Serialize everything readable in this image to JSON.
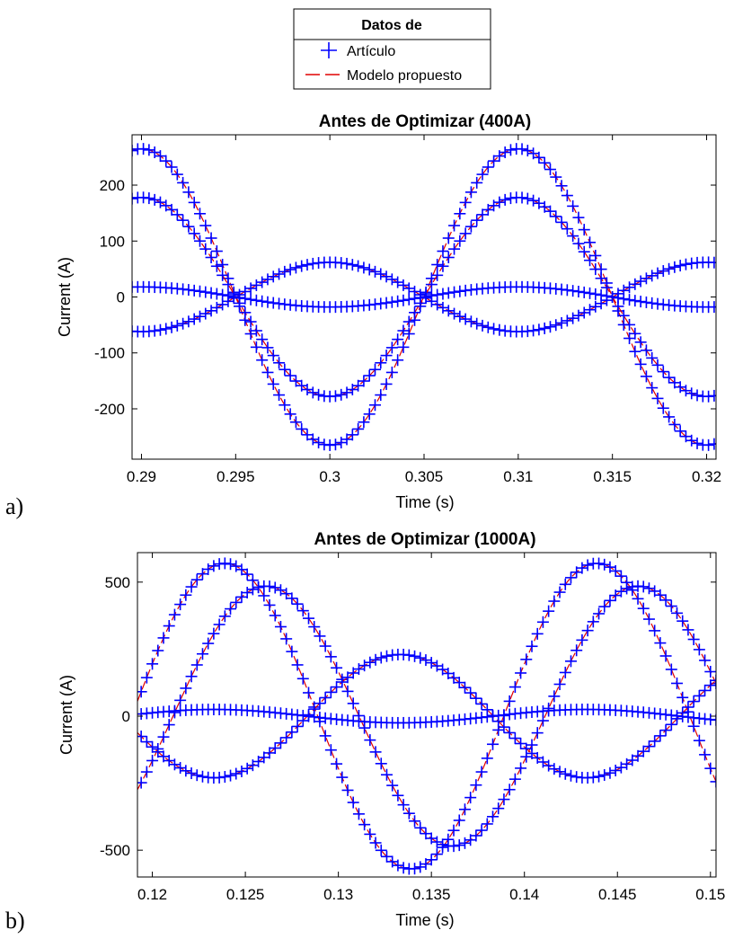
{
  "legend": {
    "title": "Datos de",
    "items": [
      {
        "label": "Artículo",
        "marker": "plus",
        "color": "#0000ff"
      },
      {
        "label": "Modelo propuesto",
        "marker": "dashed-line",
        "color": "#e00000"
      }
    ]
  },
  "panel_labels": [
    "a)",
    "b)"
  ],
  "chart_data": [
    {
      "type": "line",
      "title": "Antes de Optimizar (400A)",
      "xlabel": "Time (s)",
      "ylabel": "Current (A)",
      "xlim": [
        0.2895,
        0.3205
      ],
      "ylim": [
        -290,
        290
      ],
      "xticks": [
        0.29,
        0.295,
        0.3,
        0.305,
        0.31,
        0.315,
        0.32
      ],
      "xtick_labels": [
        "0.29",
        "0.295",
        "0.3",
        "0.305",
        "0.31",
        "0.315",
        "0.32"
      ],
      "yticks": [
        -200,
        -100,
        0,
        100,
        200
      ],
      "ytick_labels": [
        "-200",
        "-100",
        "0",
        "100",
        "200"
      ],
      "grid": false,
      "frequency_hz": 50,
      "marker_step_s": 0.0003,
      "series": [
        {
          "amplitude": 265,
          "phase_deg": -90
        },
        {
          "amplitude": 178,
          "phase_deg": -90
        },
        {
          "amplitude": 62,
          "phase_deg": 90
        },
        {
          "amplitude": 18,
          "phase_deg": -90
        }
      ]
    },
    {
      "type": "line",
      "title": "Antes de Optimizar (1000A)",
      "xlabel": "Time (s)",
      "ylabel": "Current (A)",
      "xlim": [
        0.1192,
        0.1503
      ],
      "ylim": [
        -600,
        610
      ],
      "xticks": [
        0.12,
        0.125,
        0.13,
        0.135,
        0.14,
        0.145,
        0.15
      ],
      "xtick_labels": [
        "0.12",
        "0.125",
        "0.13",
        "0.135",
        "0.14",
        "0.145",
        "0.15"
      ],
      "yticks": [
        -500,
        0,
        500
      ],
      "ytick_labels": [
        "-500",
        "0",
        "500"
      ],
      "grid": false,
      "frequency_hz": 50,
      "marker_step_s": 0.0003,
      "series": [
        {
          "amplitude": 570,
          "phase_deg": 20
        },
        {
          "amplitude": 485,
          "phase_deg": -20
        },
        {
          "amplitude": 230,
          "phase_deg": -150
        },
        {
          "amplitude": 25,
          "phase_deg": 30
        }
      ]
    }
  ]
}
